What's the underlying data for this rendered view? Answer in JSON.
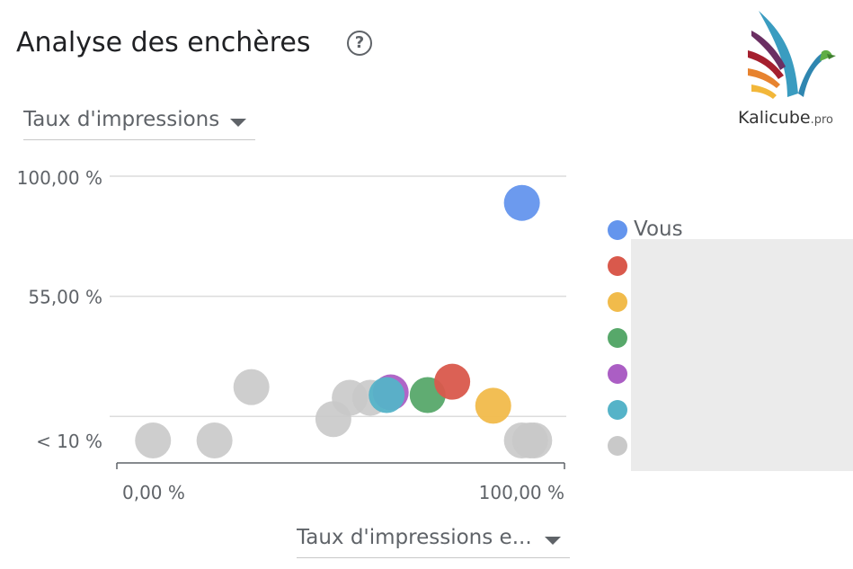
{
  "header": {
    "title": "Analyse des enchères",
    "help_glyph": "?",
    "help_icon": "help-circle-icon"
  },
  "y_selector": {
    "label": "Taux d'impressions"
  },
  "x_selector": {
    "label": "Taux d'impressions e..."
  },
  "logo": {
    "name": "Kalicube",
    "suffix": ".pro"
  },
  "chart_data": {
    "type": "scatter",
    "x_tick_labels": [
      "0,00 %",
      "100,00 %"
    ],
    "y_tick_labels": [
      {
        "label": "100,00 %",
        "value": 100
      },
      {
        "label": "55,00 %",
        "value": 55
      },
      {
        "label": "< 10 %",
        "value": 1
      }
    ],
    "xlim": [
      0,
      100
    ],
    "ylim": [
      1,
      100
    ],
    "grid": true,
    "legend_position": "right",
    "points": [
      {
        "series": 6,
        "x": 4,
        "y": 1
      },
      {
        "series": 6,
        "x": 19,
        "y": 1
      },
      {
        "series": 6,
        "x": 28,
        "y": 21
      },
      {
        "series": 6,
        "x": 48,
        "y": 9
      },
      {
        "series": 6,
        "x": 52,
        "y": 17
      },
      {
        "series": 6,
        "x": 57,
        "y": 17
      },
      {
        "series": 6,
        "x": 94,
        "y": 1
      },
      {
        "series": 6,
        "x": 96,
        "y": 1
      },
      {
        "series": 6,
        "x": 97,
        "y": 1
      },
      {
        "series": 4,
        "x": 62,
        "y": 19
      },
      {
        "series": 5,
        "x": 61,
        "y": 18
      },
      {
        "series": 3,
        "x": 71,
        "y": 18
      },
      {
        "series": 1,
        "x": 77,
        "y": 23
      },
      {
        "series": 2,
        "x": 87,
        "y": 14
      },
      {
        "series": 0,
        "x": 94,
        "y": 90
      }
    ],
    "series": [
      {
        "name": "Vous",
        "color": "#6495ed"
      },
      {
        "name": "",
        "color": "#d9594c"
      },
      {
        "name": "",
        "color": "#f1bb4b"
      },
      {
        "name": "",
        "color": "#57a86a"
      },
      {
        "name": "",
        "color": "#ab5ec4"
      },
      {
        "name": "",
        "color": "#55b3c8"
      },
      {
        "name": "",
        "color": "#c9c9c9"
      }
    ]
  }
}
